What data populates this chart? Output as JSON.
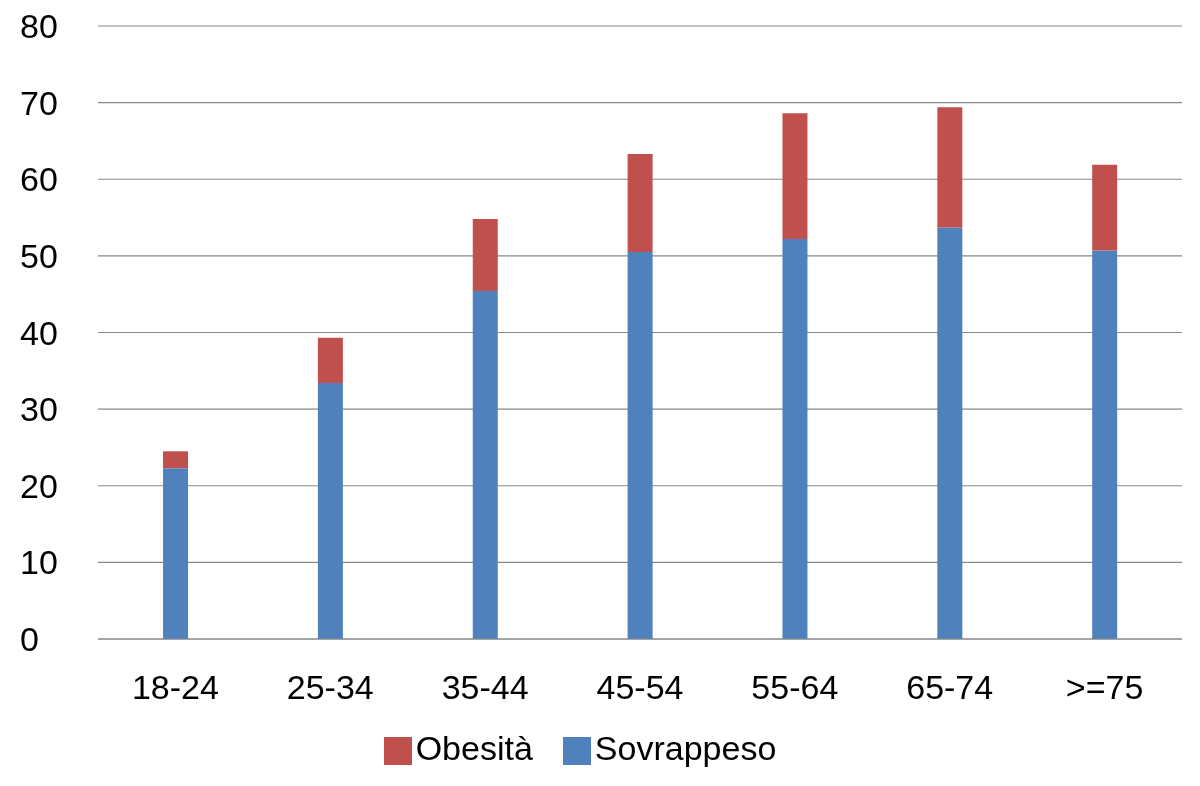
{
  "chart_data": {
    "type": "bar",
    "stacked": true,
    "categories": [
      "18-24",
      "25-34",
      "35-44",
      "45-54",
      "55-64",
      "65-74",
      ">=75"
    ],
    "series": [
      {
        "name": "Sovrappeso",
        "color": "#4f81bd",
        "values": [
          22.3,
          33.4,
          45.4,
          50.5,
          52.2,
          53.7,
          50.7
        ]
      },
      {
        "name": "Obesità",
        "color": "#c0504d",
        "values": [
          2.2,
          5.9,
          9.4,
          12.8,
          16.4,
          15.7,
          11.2
        ]
      }
    ],
    "ylim": [
      0,
      80
    ],
    "yticks": [
      0,
      10,
      20,
      30,
      40,
      50,
      60,
      70,
      80
    ],
    "grid": "y",
    "legend": "bottom"
  }
}
